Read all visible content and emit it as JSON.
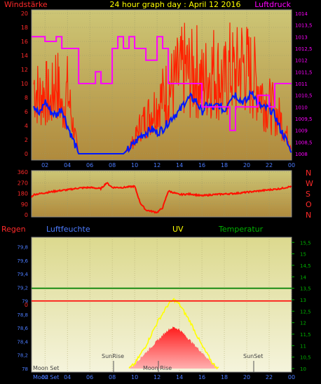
{
  "header": {
    "left_label": "Windstärke",
    "title": "24 hour graph day : April 12 2016",
    "right_label": "Luftdruck"
  },
  "colors": {
    "background": "#000000",
    "panel_top": "#c8c064",
    "panel_bottom": "#b08a3c",
    "uv_top": "#e0de9c",
    "uv_bottom": "#efeed0",
    "wind": "#ff2000",
    "wind_avg": "#0018ff",
    "pressure": "#ff00ff",
    "direction": "#ff1000",
    "temperature": "#008000",
    "rain": "#ff0000",
    "humidity": "#0000ff",
    "uv": "#ffff00",
    "solar": "#ff3030",
    "axis_text_left": "#ff2a2a",
    "axis_text_right": "#ff00ff",
    "green_text": "#00b000"
  },
  "x_tick_labels": [
    "02",
    "04",
    "06",
    "08",
    "10",
    "12",
    "14",
    "16",
    "18",
    "20",
    "22",
    "00"
  ],
  "wind_chart": {
    "y_ticks": [
      "0",
      "2",
      "4",
      "6",
      "8",
      "10",
      "12",
      "14",
      "16",
      "18",
      "20"
    ],
    "pressure_ticks": [
      "1008",
      "1008,5",
      "1009",
      "1009,5",
      "1010",
      "1010,5",
      "1011",
      "1011,5",
      "1012",
      "1012,5",
      "1013",
      "1013,5",
      "1014"
    ]
  },
  "direction_chart": {
    "y_ticks": [
      "0",
      "90",
      "180",
      "270",
      "360"
    ],
    "compass": [
      "N",
      "W",
      "S",
      "O",
      "N"
    ]
  },
  "bottom_chart": {
    "labels": {
      "rain": "Regen",
      "humidity": "Luftfeuchte",
      "uv": "UV",
      "temperature": "Temperatur"
    },
    "left_ticks": [
      "78",
      "78,2",
      "78,4",
      "78,6",
      "78,8",
      "79",
      "79,2",
      "79,4",
      "79,6",
      "79,8"
    ],
    "rain_value_label": "0",
    "right_ticks": [
      "10",
      "10,5",
      "11",
      "11,5",
      "12",
      "12,5",
      "13",
      "13,5",
      "14",
      "14,5",
      "15",
      "15,5"
    ],
    "events": {
      "moon_set": "Moon Set",
      "sun_rise": "SunRise",
      "moon_rise": "Moon Rise",
      "sun_set": "SunSet"
    }
  },
  "chart_data": [
    {
      "type": "line",
      "title": "24 hour graph day : April 12 2016",
      "x_unit": "hour",
      "xlim": [
        0.8,
        24
      ],
      "series": [
        {
          "name": "Windstärke",
          "axis": "left",
          "ylim": [
            0,
            20
          ],
          "points": [
            [
              1,
              10
            ],
            [
              1.5,
              8
            ],
            [
              2,
              9
            ],
            [
              2.5,
              7
            ],
            [
              3,
              11
            ],
            [
              3.5,
              6
            ],
            [
              4,
              9
            ],
            [
              4.5,
              4
            ],
            [
              5,
              0
            ],
            [
              6,
              0
            ],
            [
              7,
              0
            ],
            [
              8,
              0
            ],
            [
              9,
              0
            ],
            [
              10,
              2
            ],
            [
              10.5,
              4
            ],
            [
              11,
              5
            ],
            [
              11.5,
              6
            ],
            [
              12,
              7
            ],
            [
              12.5,
              8
            ],
            [
              13,
              9
            ],
            [
              13.5,
              10
            ],
            [
              14,
              11
            ],
            [
              14.5,
              12
            ],
            [
              15,
              11
            ],
            [
              15.5,
              12
            ],
            [
              16,
              10
            ],
            [
              16.5,
              11
            ],
            [
              17,
              12
            ],
            [
              17.5,
              11
            ],
            [
              18,
              10
            ],
            [
              18.5,
              12
            ],
            [
              19,
              11
            ],
            [
              19.5,
              13
            ],
            [
              20,
              12
            ],
            [
              20.5,
              11
            ],
            [
              21,
              10
            ],
            [
              21.5,
              8
            ],
            [
              22,
              7
            ],
            [
              22.5,
              6
            ],
            [
              23,
              5
            ],
            [
              23.5,
              3
            ],
            [
              24,
              1
            ]
          ]
        },
        {
          "name": "Wind avg",
          "axis": "left",
          "ylim": [
            0,
            20
          ],
          "points": [
            [
              1,
              7
            ],
            [
              1.5,
              5.5
            ],
            [
              2,
              7.5
            ],
            [
              2.5,
              6
            ],
            [
              3,
              5.5
            ],
            [
              3.5,
              6.5
            ],
            [
              4,
              4
            ],
            [
              4.5,
              2
            ],
            [
              5,
              0
            ],
            [
              6,
              0
            ],
            [
              7,
              0
            ],
            [
              8,
              0
            ],
            [
              9,
              0
            ],
            [
              10,
              1.5
            ],
            [
              10.5,
              2.5
            ],
            [
              11,
              3
            ],
            [
              11.5,
              3.5
            ],
            [
              12,
              3
            ],
            [
              12.5,
              3.5
            ],
            [
              13,
              4.5
            ],
            [
              13.5,
              5.5
            ],
            [
              14,
              6
            ],
            [
              14.5,
              7.5
            ],
            [
              15,
              8
            ],
            [
              15.5,
              7.5
            ],
            [
              16,
              6
            ],
            [
              16.5,
              7
            ],
            [
              17,
              6.5
            ],
            [
              17.5,
              7
            ],
            [
              18,
              6
            ],
            [
              18.5,
              8
            ],
            [
              19,
              8.5
            ],
            [
              19.5,
              7.5
            ],
            [
              20,
              7.5
            ],
            [
              20.5,
              9
            ],
            [
              21,
              7
            ],
            [
              21.5,
              6.5
            ],
            [
              22,
              6.5
            ],
            [
              22.5,
              5.5
            ],
            [
              23,
              3.5
            ],
            [
              23.5,
              2
            ],
            [
              24,
              0
            ]
          ]
        },
        {
          "name": "Luftdruck",
          "axis": "right",
          "ylim": [
            1008,
            1014
          ],
          "points": [
            [
              0.8,
              1013
            ],
            [
              1,
              1013
            ],
            [
              1.5,
              1013
            ],
            [
              2,
              1012.8
            ],
            [
              3,
              1013
            ],
            [
              3.5,
              1012.5
            ],
            [
              4,
              1012.5
            ],
            [
              5,
              1011
            ],
            [
              6,
              1011
            ],
            [
              6.5,
              1011.5
            ],
            [
              7,
              1011
            ],
            [
              8,
              1012.5
            ],
            [
              8.5,
              1013
            ],
            [
              9,
              1012.5
            ],
            [
              9.5,
              1013
            ],
            [
              10,
              1012.5
            ],
            [
              11,
              1012
            ],
            [
              12,
              1013
            ],
            [
              12.5,
              1012.5
            ],
            [
              13,
              1011
            ],
            [
              15,
              1011
            ],
            [
              16,
              1010
            ],
            [
              18,
              1010
            ],
            [
              18.5,
              1009
            ],
            [
              19,
              1010
            ],
            [
              20,
              1010
            ],
            [
              21,
              1010.5
            ],
            [
              22,
              1010
            ],
            [
              22.5,
              1011
            ],
            [
              23,
              1011
            ],
            [
              24,
              1011
            ]
          ]
        }
      ]
    },
    {
      "type": "line",
      "name": "wind direction",
      "ylim": [
        0,
        360
      ],
      "xlim": [
        0.8,
        24
      ],
      "points": [
        [
          0.8,
          150
        ],
        [
          1,
          170
        ],
        [
          2,
          185
        ],
        [
          3,
          200
        ],
        [
          4,
          210
        ],
        [
          5,
          225
        ],
        [
          6,
          230
        ],
        [
          7,
          220
        ],
        [
          7.5,
          270
        ],
        [
          8,
          230
        ],
        [
          9,
          230
        ],
        [
          10,
          240
        ],
        [
          10.5,
          100
        ],
        [
          11,
          40
        ],
        [
          12,
          20
        ],
        [
          12.5,
          60
        ],
        [
          13,
          200
        ],
        [
          14,
          170
        ],
        [
          15,
          175
        ],
        [
          16,
          160
        ],
        [
          17,
          170
        ],
        [
          18,
          175
        ],
        [
          19,
          180
        ],
        [
          20,
          190
        ],
        [
          21,
          200
        ],
        [
          22,
          210
        ],
        [
          23,
          220
        ],
        [
          24,
          240
        ]
      ]
    },
    {
      "type": "area",
      "name": "bottom",
      "xlim": [
        0.8,
        24
      ],
      "series": [
        {
          "name": "Temperatur",
          "axis": "right",
          "ylim": [
            10,
            15.6
          ],
          "points": [
            [
              0.8,
              13.5
            ],
            [
              24,
              13.5
            ]
          ]
        },
        {
          "name": "Regen",
          "axis": "left",
          "ylim": [
            78,
            79.9
          ],
          "points": [
            [
              0.8,
              79
            ],
            [
              24,
              79
            ]
          ]
        },
        {
          "name": "UV",
          "axis": "right",
          "ylim": [
            10,
            15.6
          ],
          "points": [
            [
              9.5,
              10
            ],
            [
              10,
              10.2
            ],
            [
              11,
              11
            ],
            [
              12,
              12
            ],
            [
              13,
              12.8
            ],
            [
              13.5,
              13
            ],
            [
              14,
              12.8
            ],
            [
              15,
              12
            ],
            [
              16,
              11
            ],
            [
              17,
              10.2
            ],
            [
              17.5,
              10
            ]
          ]
        },
        {
          "name": "Solar",
          "axis": "right",
          "ylim": [
            10,
            15.6
          ],
          "points": [
            [
              9.5,
              10
            ],
            [
              10,
              10.2
            ],
            [
              11,
              10.7
            ],
            [
              12,
              11.2
            ],
            [
              13,
              11.7
            ],
            [
              13.5,
              11.8
            ],
            [
              14,
              11.7
            ],
            [
              15,
              11.2
            ],
            [
              16,
              10.7
            ],
            [
              17,
              10.2
            ],
            [
              17.5,
              10
            ]
          ]
        }
      ]
    }
  ]
}
